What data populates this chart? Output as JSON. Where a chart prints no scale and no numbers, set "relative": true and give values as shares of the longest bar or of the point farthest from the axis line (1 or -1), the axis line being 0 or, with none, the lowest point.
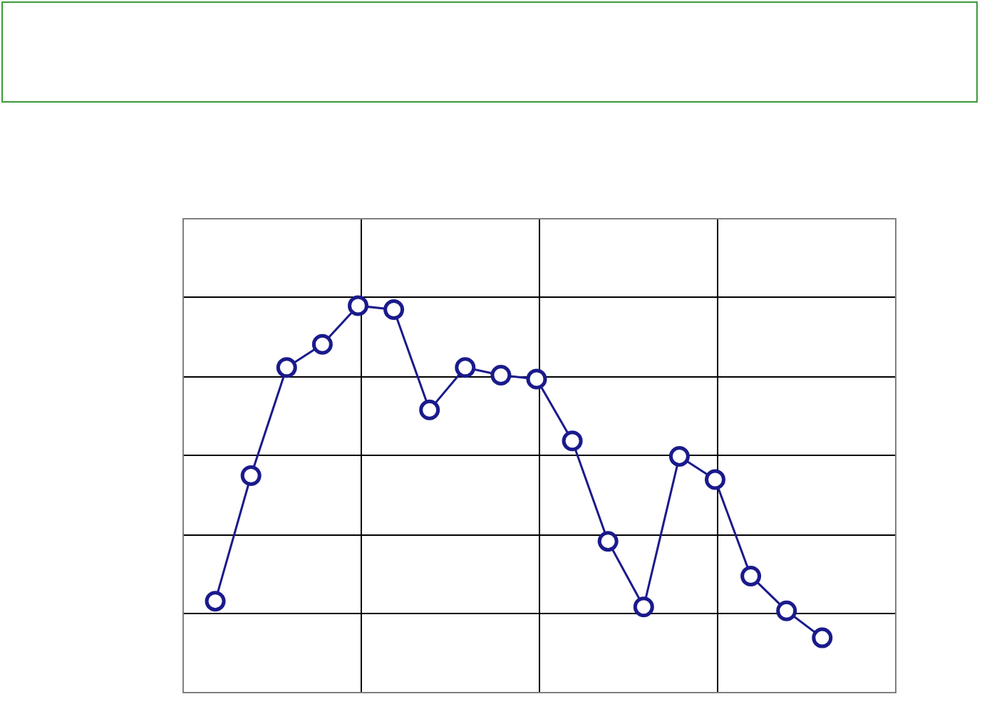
{
  "chart_data": {
    "type": "line",
    "relative": true,
    "categories": [
      null,
      null,
      null,
      null,
      null,
      null,
      null,
      null,
      null,
      null,
      null,
      null,
      null,
      null,
      null,
      null,
      null,
      null
    ],
    "series": [
      {
        "color": "#1a1a8c",
        "values": [
          0.235,
          0.56,
          0.84,
          0.9,
          1,
          0.99,
          0.73,
          0.84,
          0.82,
          0.81,
          0.65,
          0.39,
          0.22,
          0.61,
          0.55,
          0.3,
          0.21,
          0.14
        ]
      }
    ],
    "grid": true,
    "legend": false,
    "marker": "circle",
    "line_style": "solid"
  }
}
